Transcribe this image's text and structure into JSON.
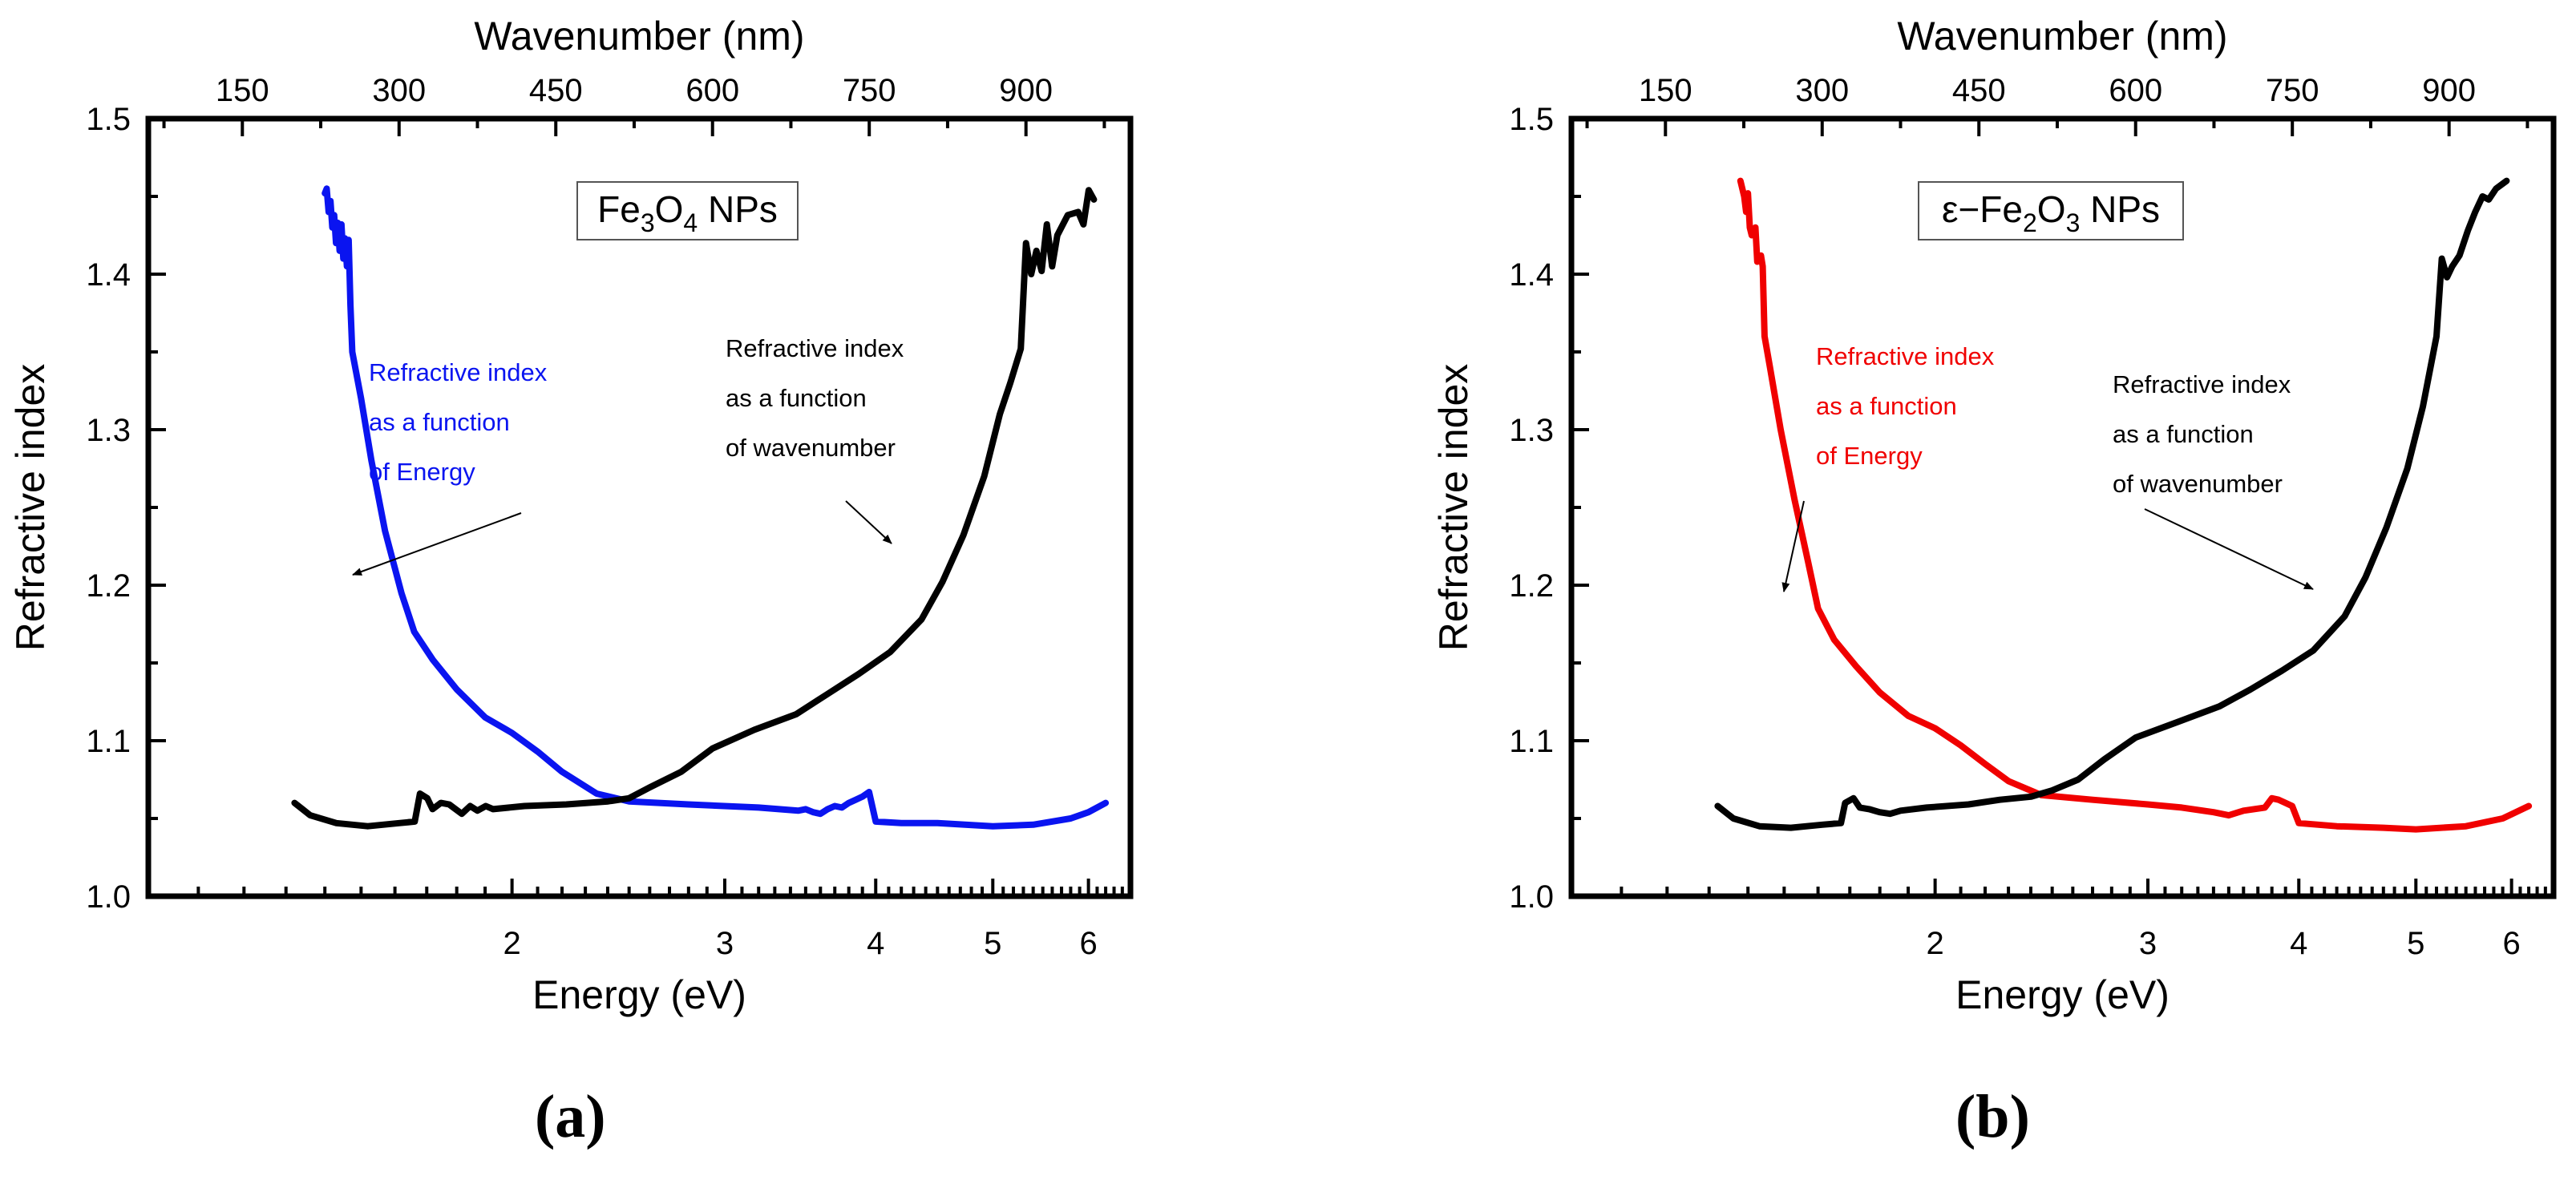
{
  "panel_labels": [
    "(a)",
    "(b)"
  ],
  "chart_data": [
    {
      "type": "line",
      "title": "",
      "legend_box": {
        "parts": [
          [
            "Fe",
            ""
          ],
          [
            "3",
            "sub"
          ],
          [
            "O",
            ""
          ],
          [
            "4",
            "sub"
          ],
          [
            " NPs",
            ""
          ]
        ]
      },
      "xlabel": "Energy (eV)",
      "x2label": "Wavenumber (nm)",
      "ylabel": "Refractive index",
      "xscale": "log",
      "xlim": [
        1.0,
        6.5
      ],
      "x2lim": [
        60,
        1000
      ],
      "ylim": [
        1.0,
        1.5
      ],
      "xticks": [
        2,
        3,
        4,
        5,
        6
      ],
      "xtick_labels": [
        "2",
        "3",
        "4",
        "5",
        "6"
      ],
      "x2ticks": [
        150,
        300,
        450,
        600,
        750,
        900
      ],
      "x2tick_labels": [
        "150",
        "300",
        "450",
        "600",
        "750",
        "900"
      ],
      "yticks": [
        1.0,
        1.1,
        1.2,
        1.3,
        1.4,
        1.5
      ],
      "ytick_labels": [
        "1.0",
        "1.1",
        "1.2",
        "1.3",
        "1.4",
        "1.5"
      ],
      "series": [
        {
          "name": "Refractive index as a function of Energy",
          "color": "#0a14f0",
          "axis": "bottom",
          "points": [
            [
              1.4,
              1.452
            ],
            [
              1.405,
              1.455
            ],
            [
              1.41,
              1.44
            ],
            [
              1.415,
              1.447
            ],
            [
              1.42,
              1.43
            ],
            [
              1.425,
              1.438
            ],
            [
              1.43,
              1.42
            ],
            [
              1.435,
              1.433
            ],
            [
              1.44,
              1.415
            ],
            [
              1.445,
              1.432
            ],
            [
              1.45,
              1.41
            ],
            [
              1.455,
              1.423
            ],
            [
              1.46,
              1.405
            ],
            [
              1.465,
              1.422
            ],
            [
              1.47,
              1.38
            ],
            [
              1.475,
              1.35
            ],
            [
              1.5,
              1.32
            ],
            [
              1.53,
              1.28
            ],
            [
              1.57,
              1.235
            ],
            [
              1.62,
              1.195
            ],
            [
              1.66,
              1.17
            ],
            [
              1.72,
              1.152
            ],
            [
              1.8,
              1.133
            ],
            [
              1.9,
              1.115
            ],
            [
              2.0,
              1.105
            ],
            [
              2.1,
              1.093
            ],
            [
              2.2,
              1.08
            ],
            [
              2.35,
              1.066
            ],
            [
              2.5,
              1.061
            ],
            [
              2.8,
              1.059
            ],
            [
              3.2,
              1.057
            ],
            [
              3.45,
              1.055
            ],
            [
              3.5,
              1.056
            ],
            [
              3.55,
              1.054
            ],
            [
              3.6,
              1.053
            ],
            [
              3.65,
              1.056
            ],
            [
              3.7,
              1.058
            ],
            [
              3.75,
              1.057
            ],
            [
              3.8,
              1.06
            ],
            [
              3.85,
              1.062
            ],
            [
              3.9,
              1.064
            ],
            [
              3.95,
              1.067
            ],
            [
              4.0,
              1.048
            ],
            [
              4.2,
              1.047
            ],
            [
              4.5,
              1.047
            ],
            [
              5.0,
              1.045
            ],
            [
              5.4,
              1.046
            ],
            [
              5.8,
              1.05
            ],
            [
              6.0,
              1.054
            ],
            [
              6.2,
              1.06
            ]
          ]
        },
        {
          "name": "Refractive index as a function of wavenumber",
          "color": "#000000",
          "axis": "top",
          "points": [
            [
              200,
              1.06
            ],
            [
              215,
              1.052
            ],
            [
              240,
              1.047
            ],
            [
              270,
              1.045
            ],
            [
              300,
              1.047
            ],
            [
              315,
              1.048
            ],
            [
              320,
              1.066
            ],
            [
              327,
              1.063
            ],
            [
              332,
              1.056
            ],
            [
              340,
              1.06
            ],
            [
              348,
              1.059
            ],
            [
              360,
              1.053
            ],
            [
              368,
              1.058
            ],
            [
              375,
              1.055
            ],
            [
              383,
              1.058
            ],
            [
              390,
              1.056
            ],
            [
              420,
              1.058
            ],
            [
              460,
              1.059
            ],
            [
              500,
              1.061
            ],
            [
              520,
              1.063
            ],
            [
              540,
              1.07
            ],
            [
              570,
              1.08
            ],
            [
              600,
              1.095
            ],
            [
              640,
              1.107
            ],
            [
              680,
              1.117
            ],
            [
              710,
              1.13
            ],
            [
              740,
              1.143
            ],
            [
              770,
              1.157
            ],
            [
              800,
              1.178
            ],
            [
              820,
              1.202
            ],
            [
              840,
              1.232
            ],
            [
              860,
              1.27
            ],
            [
              875,
              1.31
            ],
            [
              885,
              1.33
            ],
            [
              895,
              1.352
            ],
            [
              900,
              1.42
            ],
            [
              905,
              1.4
            ],
            [
              910,
              1.415
            ],
            [
              915,
              1.402
            ],
            [
              920,
              1.432
            ],
            [
              925,
              1.405
            ],
            [
              930,
              1.425
            ],
            [
              940,
              1.438
            ],
            [
              950,
              1.44
            ],
            [
              955,
              1.432
            ],
            [
              960,
              1.454
            ],
            [
              965,
              1.448
            ]
          ]
        }
      ],
      "annotations": [
        {
          "lines": [
            "Refractive index",
            "as a function",
            " of Energy"
          ],
          "color": "#0a14f0",
          "target": "Energy"
        },
        {
          "lines": [
            "Refractive index",
            "as a function",
            " of wavenumber"
          ],
          "color": "#000000",
          "target": "wavenumber"
        }
      ]
    },
    {
      "type": "line",
      "title": "",
      "legend_box": {
        "parts": [
          [
            "ε−Fe",
            ""
          ],
          [
            "2",
            "sub"
          ],
          [
            "O",
            ""
          ],
          [
            "3",
            "sub"
          ],
          [
            " NPs",
            ""
          ]
        ]
      },
      "xlabel": "Energy (eV)",
      "x2label": "Wavenumber (nm)",
      "ylabel": "Refractive index",
      "xscale": "log",
      "xlim": [
        1.0,
        6.5
      ],
      "x2lim": [
        60,
        1000
      ],
      "ylim": [
        1.0,
        1.5
      ],
      "xticks": [
        2,
        3,
        4,
        5,
        6
      ],
      "xtick_labels": [
        "2",
        "3",
        "4",
        "5",
        "6"
      ],
      "x2ticks": [
        150,
        300,
        450,
        600,
        750,
        900
      ],
      "x2tick_labels": [
        "150",
        "300",
        "450",
        "600",
        "750",
        "900"
      ],
      "yticks": [
        1.0,
        1.1,
        1.2,
        1.3,
        1.4,
        1.5
      ],
      "ytick_labels": [
        "1.0",
        "1.1",
        "1.2",
        "1.3",
        "1.4",
        "1.5"
      ],
      "series": [
        {
          "name": "Refractive index as a function of Energy",
          "color": "#f00000",
          "axis": "bottom",
          "points": [
            [
              1.38,
              1.46
            ],
            [
              1.39,
              1.45
            ],
            [
              1.395,
              1.44
            ],
            [
              1.4,
              1.452
            ],
            [
              1.405,
              1.43
            ],
            [
              1.41,
              1.425
            ],
            [
              1.42,
              1.43
            ],
            [
              1.425,
              1.408
            ],
            [
              1.43,
              1.41
            ],
            [
              1.435,
              1.412
            ],
            [
              1.44,
              1.405
            ],
            [
              1.445,
              1.36
            ],
            [
              1.46,
              1.34
            ],
            [
              1.49,
              1.3
            ],
            [
              1.53,
              1.255
            ],
            [
              1.57,
              1.215
            ],
            [
              1.6,
              1.185
            ],
            [
              1.65,
              1.165
            ],
            [
              1.72,
              1.148
            ],
            [
              1.8,
              1.131
            ],
            [
              1.9,
              1.116
            ],
            [
              2.0,
              1.108
            ],
            [
              2.1,
              1.097
            ],
            [
              2.2,
              1.085
            ],
            [
              2.3,
              1.074
            ],
            [
              2.45,
              1.065
            ],
            [
              2.7,
              1.062
            ],
            [
              3.0,
              1.059
            ],
            [
              3.2,
              1.057
            ],
            [
              3.4,
              1.054
            ],
            [
              3.5,
              1.052
            ],
            [
              3.6,
              1.055
            ],
            [
              3.75,
              1.057
            ],
            [
              3.8,
              1.063
            ],
            [
              3.85,
              1.062
            ],
            [
              3.9,
              1.06
            ],
            [
              3.95,
              1.058
            ],
            [
              4.0,
              1.047
            ],
            [
              4.3,
              1.045
            ],
            [
              4.7,
              1.044
            ],
            [
              5.0,
              1.043
            ],
            [
              5.5,
              1.045
            ],
            [
              5.9,
              1.05
            ],
            [
              6.2,
              1.058
            ]
          ]
        },
        {
          "name": "Refractive index as a function of wavenumber",
          "color": "#000000",
          "axis": "top",
          "points": [
            [
              200,
              1.058
            ],
            [
              215,
              1.05
            ],
            [
              240,
              1.045
            ],
            [
              270,
              1.044
            ],
            [
              300,
              1.046
            ],
            [
              318,
              1.047
            ],
            [
              322,
              1.06
            ],
            [
              330,
              1.063
            ],
            [
              336,
              1.057
            ],
            [
              345,
              1.056
            ],
            [
              355,
              1.054
            ],
            [
              365,
              1.053
            ],
            [
              375,
              1.055
            ],
            [
              400,
              1.057
            ],
            [
              440,
              1.059
            ],
            [
              470,
              1.062
            ],
            [
              500,
              1.064
            ],
            [
              520,
              1.068
            ],
            [
              545,
              1.075
            ],
            [
              570,
              1.088
            ],
            [
              600,
              1.102
            ],
            [
              640,
              1.112
            ],
            [
              680,
              1.122
            ],
            [
              710,
              1.133
            ],
            [
              740,
              1.145
            ],
            [
              770,
              1.158
            ],
            [
              800,
              1.18
            ],
            [
              820,
              1.205
            ],
            [
              840,
              1.237
            ],
            [
              860,
              1.275
            ],
            [
              875,
              1.315
            ],
            [
              888,
              1.36
            ],
            [
              893,
              1.41
            ],
            [
              898,
              1.398
            ],
            [
              903,
              1.405
            ],
            [
              910,
              1.412
            ],
            [
              918,
              1.428
            ],
            [
              925,
              1.44
            ],
            [
              932,
              1.45
            ],
            [
              938,
              1.448
            ],
            [
              945,
              1.455
            ],
            [
              955,
              1.46
            ]
          ]
        }
      ],
      "annotations": [
        {
          "lines": [
            "Refractive index",
            "as a function",
            " of Energy"
          ],
          "color": "#f00000",
          "target": "Energy"
        },
        {
          "lines": [
            "Refractive index",
            "as a function",
            " of wavenumber"
          ],
          "color": "#000000",
          "target": "wavenumber"
        }
      ]
    }
  ]
}
